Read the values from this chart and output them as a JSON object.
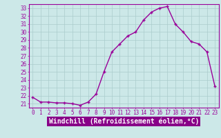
{
  "x": [
    0,
    1,
    2,
    3,
    4,
    5,
    6,
    7,
    8,
    9,
    10,
    11,
    12,
    13,
    14,
    15,
    16,
    17,
    18,
    19,
    20,
    21,
    22,
    23
  ],
  "y": [
    21.8,
    21.2,
    21.2,
    21.1,
    21.1,
    21.0,
    20.8,
    21.2,
    22.2,
    25.0,
    27.5,
    28.5,
    29.5,
    30.0,
    31.5,
    32.5,
    33.0,
    33.2,
    31.0,
    30.0,
    28.8,
    28.5,
    27.5,
    23.2
  ],
  "line_color": "#990099",
  "marker": "+",
  "bg_color": "#cce8e8",
  "grid_color": "#aacccc",
  "xlabel": "Windchill (Refroidissement éolien,°C)",
  "xlabel_bg": "#880088",
  "xlabel_color": "#ffffff",
  "ylim": [
    20.5,
    33.5
  ],
  "xlim": [
    -0.5,
    23.5
  ],
  "yticks": [
    21,
    22,
    23,
    24,
    25,
    26,
    27,
    28,
    29,
    30,
    31,
    32,
    33
  ],
  "xticks": [
    0,
    1,
    2,
    3,
    4,
    5,
    6,
    7,
    8,
    9,
    10,
    11,
    12,
    13,
    14,
    15,
    16,
    17,
    18,
    19,
    20,
    21,
    22,
    23
  ],
  "tick_fontsize": 5.5,
  "xlabel_fontsize": 7.0,
  "line_width": 1.0,
  "marker_size": 3.5
}
